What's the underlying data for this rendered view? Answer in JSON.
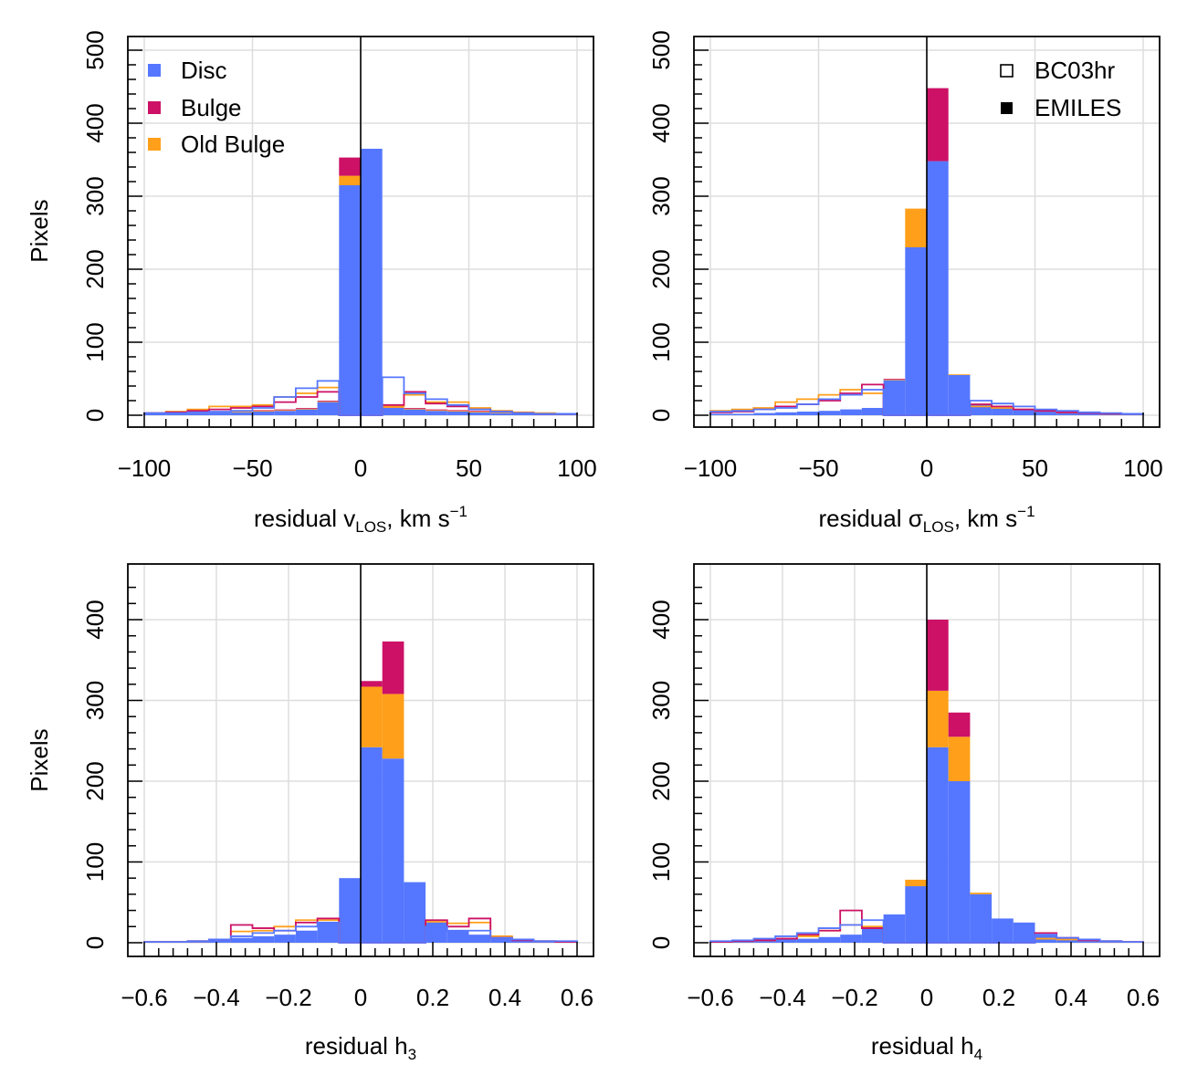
{
  "colors": {
    "disc": "#5577ff",
    "bulge": "#cc1166",
    "old_bulge": "#ff9f1a",
    "grid": "#dddddd",
    "axis": "#000000"
  },
  "legend_components": [
    {
      "key": "disc",
      "label": "Disc"
    },
    {
      "key": "bulge",
      "label": "Bulge"
    },
    {
      "key": "old_bulge",
      "label": "Old Bulge"
    }
  ],
  "legend_models": [
    {
      "key": "bc03hr",
      "label": "BC03hr",
      "style": "open"
    },
    {
      "key": "emiles",
      "label": "EMILES",
      "style": "filled"
    }
  ],
  "chart_data": [
    {
      "type": "bar",
      "panel": "vlos",
      "ylabel": "Pixels",
      "xlabel_main": "residual v",
      "xlabel_sub": "LOS",
      "xlabel_tail": ", km s",
      "xlabel_sup": "−1",
      "xlim": [
        -100,
        100
      ],
      "ylim": [
        0,
        500
      ],
      "xticks": [
        -100,
        -50,
        0,
        50,
        100
      ],
      "xtick_labels": [
        "−100",
        "−50",
        "0",
        "50",
        "100"
      ],
      "yticks": [
        0,
        100,
        200,
        300,
        400,
        500
      ],
      "ytick_labels": [
        "0",
        "100",
        "200",
        "300",
        "400",
        "500"
      ],
      "bin_edges": [
        -100,
        -90,
        -80,
        -70,
        -60,
        -50,
        -40,
        -30,
        -20,
        -10,
        0,
        10,
        20,
        30,
        40,
        50,
        60,
        70,
        80,
        90,
        100
      ],
      "filled": {
        "disc": [
          2,
          2,
          3,
          4,
          4,
          5,
          6,
          8,
          18,
          315,
          365,
          10,
          8,
          6,
          5,
          4,
          3,
          3,
          2,
          2
        ],
        "old_bulge": [
          0,
          0,
          1,
          1,
          1,
          1,
          1,
          1,
          1,
          13,
          0,
          1,
          1,
          1,
          1,
          1,
          1,
          0,
          0,
          0
        ],
        "bulge": [
          0,
          0,
          0,
          0,
          0,
          1,
          1,
          1,
          1,
          25,
          0,
          1,
          1,
          1,
          1,
          1,
          1,
          0,
          0,
          0
        ]
      },
      "open": {
        "disc": [
          3,
          3,
          4,
          5,
          6,
          10,
          25,
          37,
          47,
          0,
          0,
          52,
          30,
          22,
          14,
          8,
          5,
          3,
          2,
          2
        ],
        "old_bulge": [
          3,
          5,
          8,
          12,
          12,
          14,
          25,
          30,
          38,
          0,
          0,
          12,
          28,
          18,
          18,
          10,
          6,
          4,
          3,
          2
        ],
        "bulge": [
          3,
          4,
          6,
          8,
          10,
          12,
          18,
          25,
          32,
          0,
          0,
          14,
          32,
          16,
          12,
          8,
          5,
          3,
          2,
          2
        ]
      }
    },
    {
      "type": "bar",
      "panel": "sigma",
      "ylabel": "",
      "xlabel_main": "residual σ",
      "xlabel_sub": "LOS",
      "xlabel_tail": ", km s",
      "xlabel_sup": "−1",
      "xlim": [
        -100,
        100
      ],
      "ylim": [
        0,
        500
      ],
      "xticks": [
        -100,
        -50,
        0,
        50,
        100
      ],
      "xtick_labels": [
        "−100",
        "−50",
        "0",
        "50",
        "100"
      ],
      "yticks": [
        0,
        100,
        200,
        300,
        400,
        500
      ],
      "ytick_labels": [
        "0",
        "100",
        "200",
        "300",
        "400",
        "500"
      ],
      "bin_edges": [
        -100,
        -90,
        -80,
        -70,
        -60,
        -50,
        -40,
        -30,
        -20,
        -10,
        0,
        10,
        20,
        30,
        40,
        50,
        60,
        70,
        80,
        90,
        100
      ],
      "filled": {
        "disc": [
          2,
          2,
          3,
          4,
          5,
          6,
          8,
          10,
          48,
          230,
          348,
          55,
          15,
          10,
          8,
          5,
          4,
          3,
          2,
          2
        ],
        "old_bulge": [
          0,
          0,
          0,
          0,
          0,
          0,
          0,
          0,
          1,
          53,
          0,
          1,
          0,
          0,
          0,
          0,
          0,
          0,
          0,
          0
        ],
        "bulge": [
          0,
          0,
          0,
          0,
          0,
          0,
          0,
          0,
          1,
          0,
          100,
          0,
          0,
          0,
          0,
          0,
          0,
          0,
          0,
          0
        ]
      },
      "open": {
        "disc": [
          5,
          6,
          8,
          10,
          15,
          22,
          28,
          35,
          0,
          0,
          0,
          0,
          20,
          16,
          12,
          8,
          6,
          4,
          3,
          2
        ],
        "old_bulge": [
          6,
          8,
          10,
          18,
          22,
          28,
          35,
          30,
          0,
          0,
          0,
          0,
          12,
          10,
          8,
          6,
          4,
          3,
          2,
          2
        ],
        "bulge": [
          4,
          5,
          8,
          12,
          15,
          20,
          30,
          42,
          0,
          0,
          0,
          0,
          15,
          12,
          8,
          6,
          4,
          3,
          2,
          2
        ]
      }
    },
    {
      "type": "bar",
      "panel": "h3",
      "ylabel": "Pixels",
      "xlabel_main": "residual h",
      "xlabel_sub": "3",
      "xlabel_tail": "",
      "xlabel_sup": "",
      "xlim": [
        -0.6,
        0.6
      ],
      "ylim": [
        0,
        450
      ],
      "xticks": [
        -0.6,
        -0.4,
        -0.2,
        0,
        0.2,
        0.4,
        0.6
      ],
      "xtick_labels": [
        "−0.6",
        "−0.4",
        "−0.2",
        "0",
        "0.2",
        "0.4",
        "0.6"
      ],
      "yticks": [
        0,
        100,
        200,
        300,
        400
      ],
      "ytick_labels": [
        "0",
        "100",
        "200",
        "300",
        "400"
      ],
      "bin_edges": [
        -0.6,
        -0.54,
        -0.48,
        -0.42,
        -0.36,
        -0.3,
        -0.24,
        -0.18,
        -0.12,
        -0.06,
        0,
        0.06,
        0.12,
        0.18,
        0.24,
        0.3,
        0.36,
        0.42,
        0.48,
        0.54,
        0.6
      ],
      "filled": {
        "disc": [
          1,
          1,
          2,
          4,
          6,
          8,
          10,
          15,
          25,
          80,
          242,
          228,
          75,
          25,
          15,
          10,
          6,
          4,
          2,
          1
        ],
        "old_bulge": [
          0,
          0,
          0,
          0,
          0,
          0,
          0,
          0,
          1,
          0,
          75,
          80,
          0,
          0,
          0,
          0,
          0,
          0,
          0,
          0
        ],
        "bulge": [
          0,
          0,
          0,
          0,
          0,
          0,
          0,
          0,
          0,
          0,
          7,
          65,
          0,
          0,
          0,
          0,
          0,
          0,
          0,
          0
        ]
      },
      "open": {
        "disc": [
          1,
          1,
          2,
          4,
          8,
          12,
          15,
          20,
          25,
          0,
          0,
          0,
          0,
          20,
          15,
          15,
          6,
          4,
          2,
          2
        ],
        "old_bulge": [
          1,
          1,
          2,
          4,
          14,
          15,
          20,
          28,
          28,
          0,
          0,
          0,
          0,
          26,
          24,
          25,
          8,
          4,
          2,
          1
        ],
        "bulge": [
          1,
          1,
          2,
          4,
          22,
          18,
          15,
          25,
          30,
          0,
          0,
          0,
          0,
          28,
          20,
          30,
          6,
          3,
          2,
          1
        ]
      }
    },
    {
      "type": "bar",
      "panel": "h4",
      "ylabel": "",
      "xlabel_main": "residual h",
      "xlabel_sub": "4",
      "xlabel_tail": "",
      "xlabel_sup": "",
      "xlim": [
        -0.6,
        0.6
      ],
      "ylim": [
        0,
        450
      ],
      "xticks": [
        -0.6,
        -0.4,
        -0.2,
        0,
        0.2,
        0.4,
        0.6
      ],
      "xtick_labels": [
        "−0.6",
        "−0.4",
        "−0.2",
        "0",
        "0.2",
        "0.4",
        "0.6"
      ],
      "yticks": [
        0,
        100,
        200,
        300,
        400
      ],
      "ytick_labels": [
        "0",
        "100",
        "200",
        "300",
        "400"
      ],
      "bin_edges": [
        -0.6,
        -0.54,
        -0.48,
        -0.42,
        -0.36,
        -0.3,
        -0.24,
        -0.18,
        -0.12,
        -0.06,
        0,
        0.06,
        0.12,
        0.18,
        0.24,
        0.3,
        0.36,
        0.42,
        0.48,
        0.54,
        0.6
      ],
      "filled": {
        "disc": [
          1,
          2,
          3,
          4,
          5,
          7,
          10,
          20,
          35,
          70,
          242,
          200,
          60,
          30,
          25,
          10,
          5,
          4,
          2,
          1
        ],
        "old_bulge": [
          0,
          0,
          0,
          0,
          0,
          0,
          0,
          0,
          0,
          8,
          70,
          55,
          2,
          0,
          0,
          0,
          0,
          0,
          0,
          0
        ],
        "bulge": [
          0,
          0,
          0,
          0,
          0,
          0,
          0,
          0,
          0,
          0,
          88,
          30,
          0,
          0,
          0,
          0,
          0,
          0,
          0,
          0
        ]
      },
      "open": {
        "disc": [
          2,
          3,
          5,
          8,
          12,
          18,
          22,
          28,
          0,
          0,
          0,
          0,
          0,
          0,
          0,
          10,
          6,
          4,
          2,
          1
        ],
        "old_bulge": [
          1,
          2,
          3,
          5,
          8,
          15,
          22,
          20,
          0,
          0,
          0,
          0,
          0,
          0,
          0,
          5,
          4,
          3,
          2,
          1
        ],
        "bulge": [
          1,
          2,
          3,
          5,
          10,
          15,
          40,
          18,
          0,
          0,
          0,
          0,
          0,
          0,
          0,
          12,
          6,
          3,
          2,
          1
        ]
      }
    }
  ]
}
